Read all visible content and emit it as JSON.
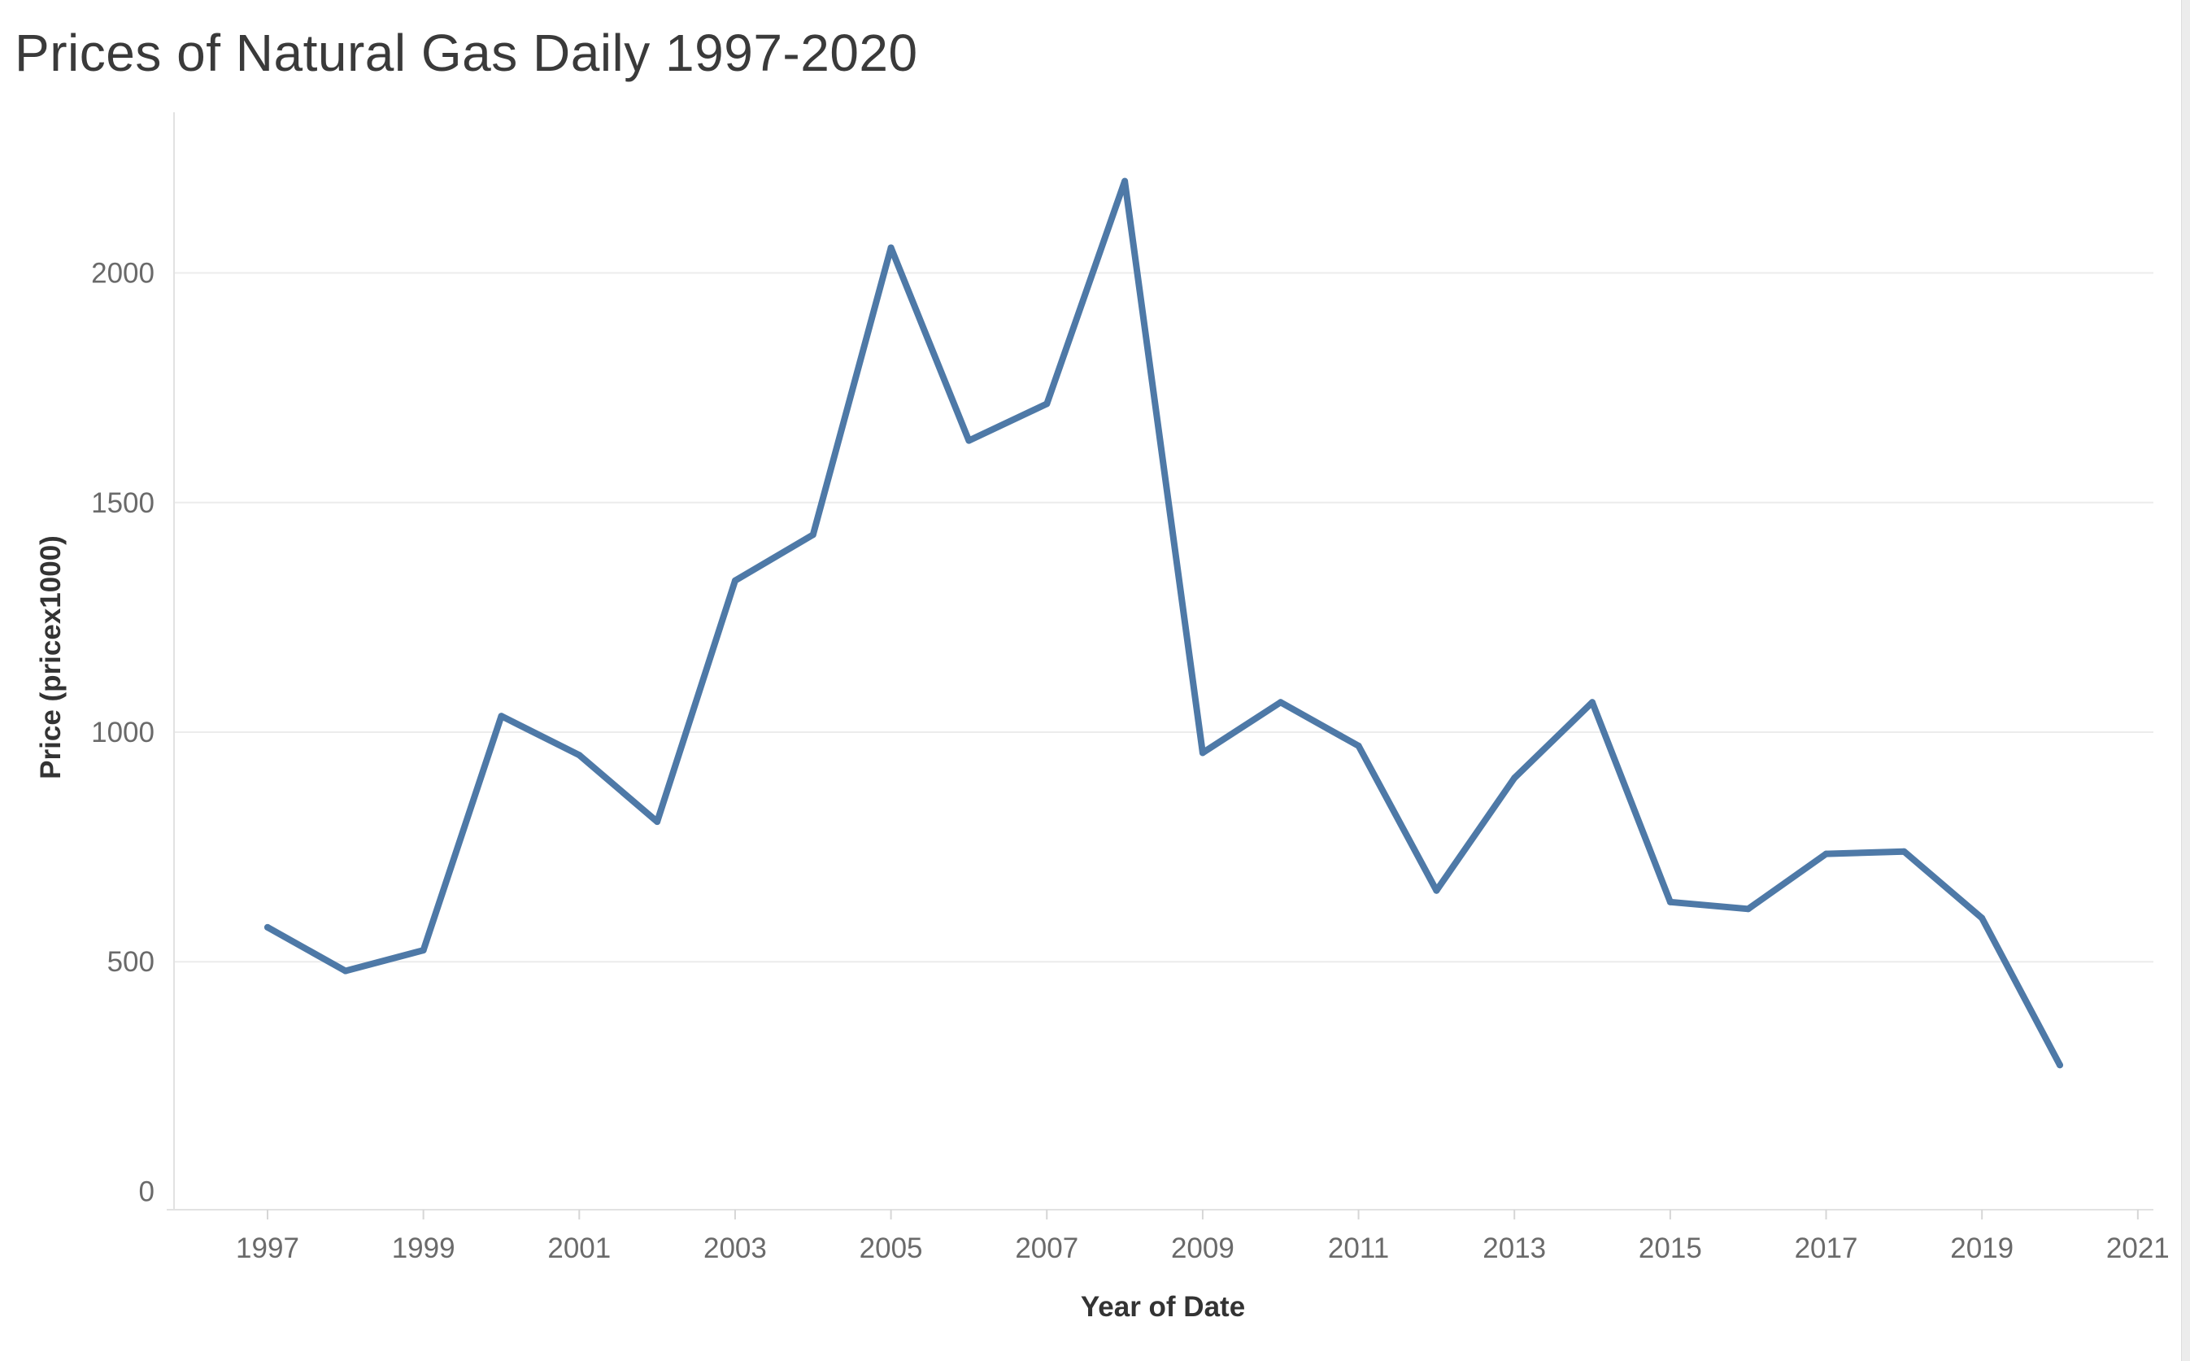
{
  "chart_data": {
    "type": "line",
    "title": "Prices of Natural Gas Daily 1997-2020",
    "xlabel": "Year of Date",
    "ylabel": "Price (pricex1000)",
    "xlim": [
      1995.8,
      2021.2
    ],
    "ylim": [
      -40,
      2350
    ],
    "x_ticks": [
      1997,
      1999,
      2001,
      2003,
      2005,
      2007,
      2009,
      2011,
      2013,
      2015,
      2017,
      2019,
      2021
    ],
    "y_ticks": [
      0,
      500,
      1000,
      1500,
      2000
    ],
    "grid": "horizontal",
    "color": "#4e79a7",
    "series": [
      {
        "x": [
          1997,
          1998,
          1999,
          2000,
          2001,
          2002,
          2003,
          2004,
          2005,
          2006,
          2007,
          2008,
          2009,
          2010,
          2011,
          2012,
          2013,
          2014,
          2015,
          2016,
          2017,
          2018,
          2019,
          2020
        ],
        "values": [
          575,
          480,
          525,
          1035,
          950,
          805,
          1330,
          1430,
          2055,
          1635,
          1715,
          2200,
          955,
          1065,
          970,
          655,
          900,
          1065,
          630,
          615,
          735,
          740,
          595,
          275
        ]
      }
    ]
  }
}
